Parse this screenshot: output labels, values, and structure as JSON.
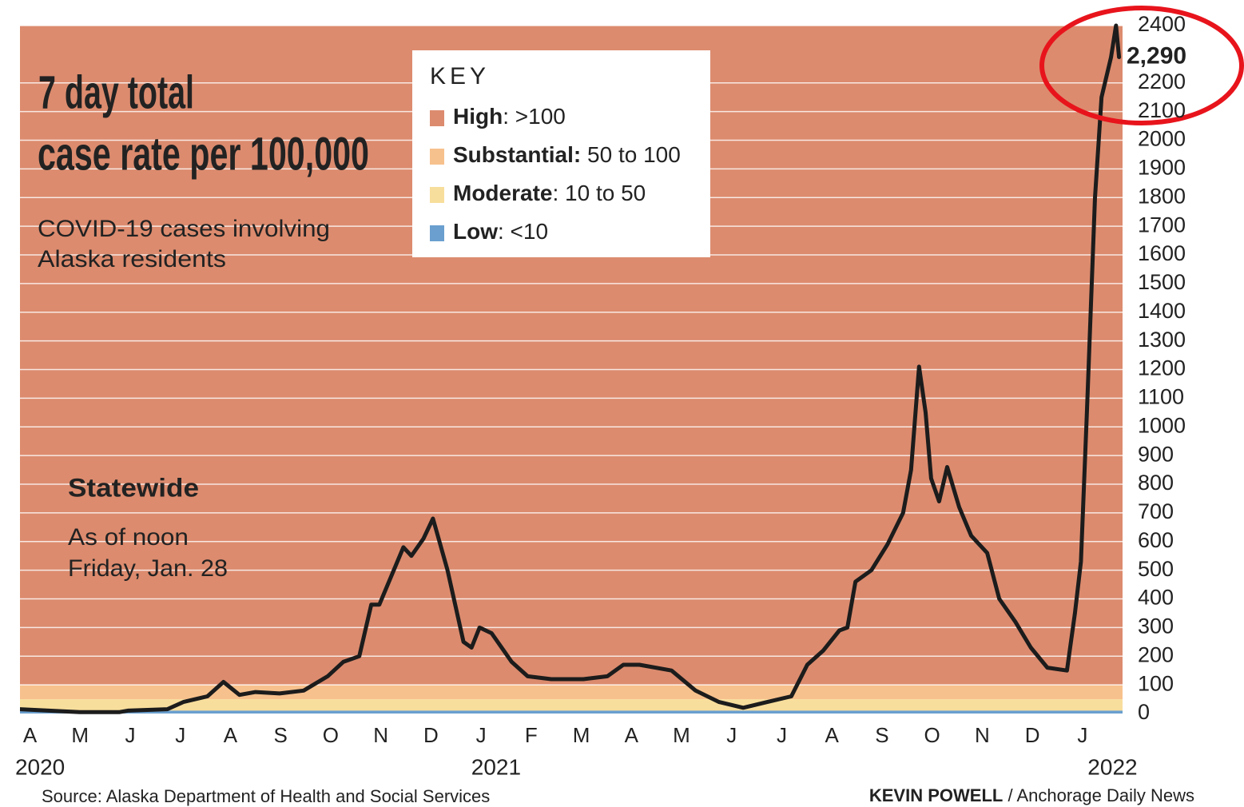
{
  "chart_data": {
    "type": "line",
    "title": [
      "7 day total",
      "case rate per 100,000"
    ],
    "subtitle": [
      "COVID-19 cases involving",
      "Alaska residents"
    ],
    "note_title": "Statewide",
    "note": [
      "As of noon",
      "Friday, Jan. 28"
    ],
    "key_title": "KEY",
    "bands": [
      {
        "name": "High",
        "text": ": >100",
        "color": "#dc8b6e",
        "min": 100
      },
      {
        "name": "Substantial:",
        "text": " 50 to 100",
        "color": "#f7c18d",
        "min": 50
      },
      {
        "name": "Moderate",
        "text": ": 10 to 50",
        "color": "#f8de9c",
        "min": 10
      },
      {
        "name": "Low",
        "text": ": <10",
        "color": "#6a9fcf",
        "min": 0
      }
    ],
    "x": [
      -0.2,
      0.99,
      1.79,
      1.95,
      2.74,
      3.06,
      3.54,
      3.86,
      4.18,
      4.5,
      4.98,
      5.46,
      5.94,
      6.25,
      6.57,
      6.81,
      6.97,
      7.45,
      7.61,
      7.85,
      8.04,
      8.33,
      8.65,
      8.81,
      8.97,
      9.21,
      9.61,
      9.93,
      10.4,
      11.04,
      11.52,
      11.84,
      12.16,
      12.8,
      13.28,
      13.75,
      14.23,
      14.71,
      15.19,
      15.51,
      15.83,
      16.15,
      16.31,
      16.47,
      16.79,
      17.11,
      17.42,
      17.58,
      17.74,
      17.87,
      17.98,
      18.14,
      18.3,
      18.54,
      18.78,
      19.1,
      19.34,
      19.66,
      19.97,
      20.3,
      20.69,
      20.85,
      20.97,
      21.09,
      21.25,
      21.38,
      21.57,
      21.67,
      21.73
    ],
    "values": [
      15,
      5,
      5,
      10,
      15,
      40,
      60,
      110,
      65,
      75,
      70,
      80,
      130,
      180,
      200,
      380,
      380,
      580,
      550,
      610,
      680,
      500,
      250,
      230,
      300,
      280,
      180,
      130,
      120,
      120,
      130,
      170,
      170,
      150,
      80,
      40,
      20,
      40,
      60,
      170,
      220,
      290,
      300,
      460,
      500,
      590,
      700,
      850,
      1210,
      1050,
      820,
      740,
      860,
      720,
      620,
      560,
      400,
      320,
      230,
      160,
      150,
      350,
      530,
      1060,
      1800,
      2150,
      2290,
      2400,
      2290
    ],
    "color": "#1c1c1c",
    "xlim": [
      -0.2,
      21.8
    ],
    "xticks": [
      {
        "value": 0,
        "label": "A"
      },
      {
        "value": 1,
        "label": "M"
      },
      {
        "value": 2,
        "label": "J"
      },
      {
        "value": 3,
        "label": "J"
      },
      {
        "value": 4,
        "label": "A"
      },
      {
        "value": 5,
        "label": "S"
      },
      {
        "value": 6,
        "label": "O"
      },
      {
        "value": 7,
        "label": "N"
      },
      {
        "value": 8,
        "label": "D"
      },
      {
        "value": 9,
        "label": "J"
      },
      {
        "value": 10,
        "label": "F"
      },
      {
        "value": 11,
        "label": "M"
      },
      {
        "value": 12,
        "label": "A"
      },
      {
        "value": 13,
        "label": "M"
      },
      {
        "value": 14,
        "label": "J"
      },
      {
        "value": 15,
        "label": "J"
      },
      {
        "value": 16,
        "label": "A"
      },
      {
        "value": 17,
        "label": "S"
      },
      {
        "value": 18,
        "label": "O"
      },
      {
        "value": 19,
        "label": "N"
      },
      {
        "value": 20,
        "label": "D"
      },
      {
        "value": 21,
        "label": "J"
      }
    ],
    "year_labels": [
      {
        "value": 0.2,
        "label": "2020"
      },
      {
        "value": 9.3,
        "label": "2021"
      },
      {
        "value": 21.6,
        "label": "2022"
      }
    ],
    "ylim": [
      0,
      2400
    ],
    "yticks": [
      0,
      100,
      200,
      300,
      400,
      500,
      600,
      700,
      800,
      900,
      1000,
      1100,
      1200,
      1300,
      1400,
      1500,
      1600,
      1700,
      1800,
      1900,
      2000,
      2100,
      2200,
      2400
    ],
    "grid": true,
    "highlight": {
      "value": 2290,
      "label": "2,290"
    },
    "source": "Source: Alaska Department of Health and Social Services",
    "credit_name": "KEVIN POWELL",
    "credit_org": " / Anchorage Daily News"
  }
}
